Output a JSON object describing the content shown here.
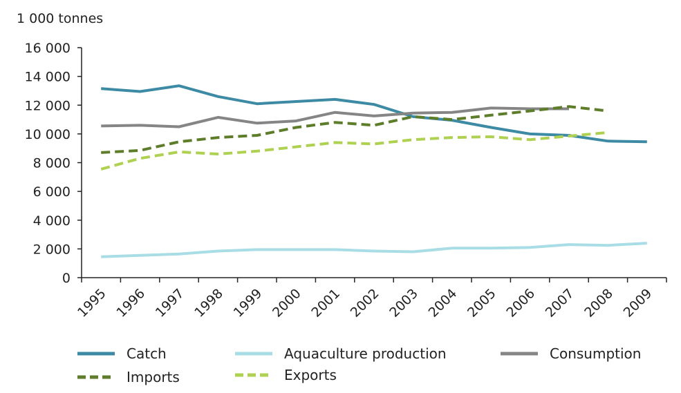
{
  "chart_data": {
    "type": "line",
    "unit_label": "1 000 tonnes",
    "categories": [
      "1995",
      "1996",
      "1997",
      "1998",
      "1999",
      "2000",
      "2001",
      "2002",
      "2003",
      "2004",
      "2005",
      "2006",
      "2007",
      "2008",
      "2009"
    ],
    "ylim": [
      0,
      16000
    ],
    "yticks": [
      0,
      2000,
      4000,
      6000,
      8000,
      10000,
      12000,
      14000,
      16000
    ],
    "ytick_labels": [
      "0",
      "2 000",
      "4 000",
      "6 000",
      "8 000",
      "10 000",
      "12 000",
      "14 000",
      "16 000"
    ],
    "grid": false,
    "legend_position": "bottom",
    "series": [
      {
        "name": "Catch",
        "color": "#3d8aa4",
        "dashed": false,
        "values": [
          13150,
          12950,
          13350,
          12600,
          12100,
          12250,
          12400,
          12050,
          11200,
          10950,
          10450,
          10000,
          9900,
          9500,
          9450
        ]
      },
      {
        "name": "Aquaculture production",
        "color": "#a9dde6",
        "dashed": false,
        "values": [
          1450,
          1550,
          1650,
          1850,
          1950,
          1950,
          1950,
          1850,
          1800,
          2050,
          2050,
          2100,
          2300,
          2250,
          2400
        ]
      },
      {
        "name": "Consumption",
        "color": "#858585",
        "dashed": false,
        "values": [
          10550,
          10600,
          10500,
          11150,
          10750,
          10900,
          11500,
          11250,
          11450,
          11500,
          11800,
          11750,
          11750,
          null,
          null
        ]
      },
      {
        "name": "Imports",
        "color": "#5e7d2a",
        "dashed": true,
        "values": [
          8700,
          8850,
          9450,
          9750,
          9900,
          10450,
          10800,
          10600,
          11200,
          11000,
          11300,
          11600,
          11900,
          11600,
          null
        ]
      },
      {
        "name": "Exports",
        "color": "#afd152",
        "dashed": true,
        "values": [
          7550,
          8300,
          8750,
          8600,
          8800,
          9100,
          9400,
          9300,
          9600,
          9750,
          9800,
          9600,
          9850,
          10100,
          null
        ]
      }
    ]
  }
}
